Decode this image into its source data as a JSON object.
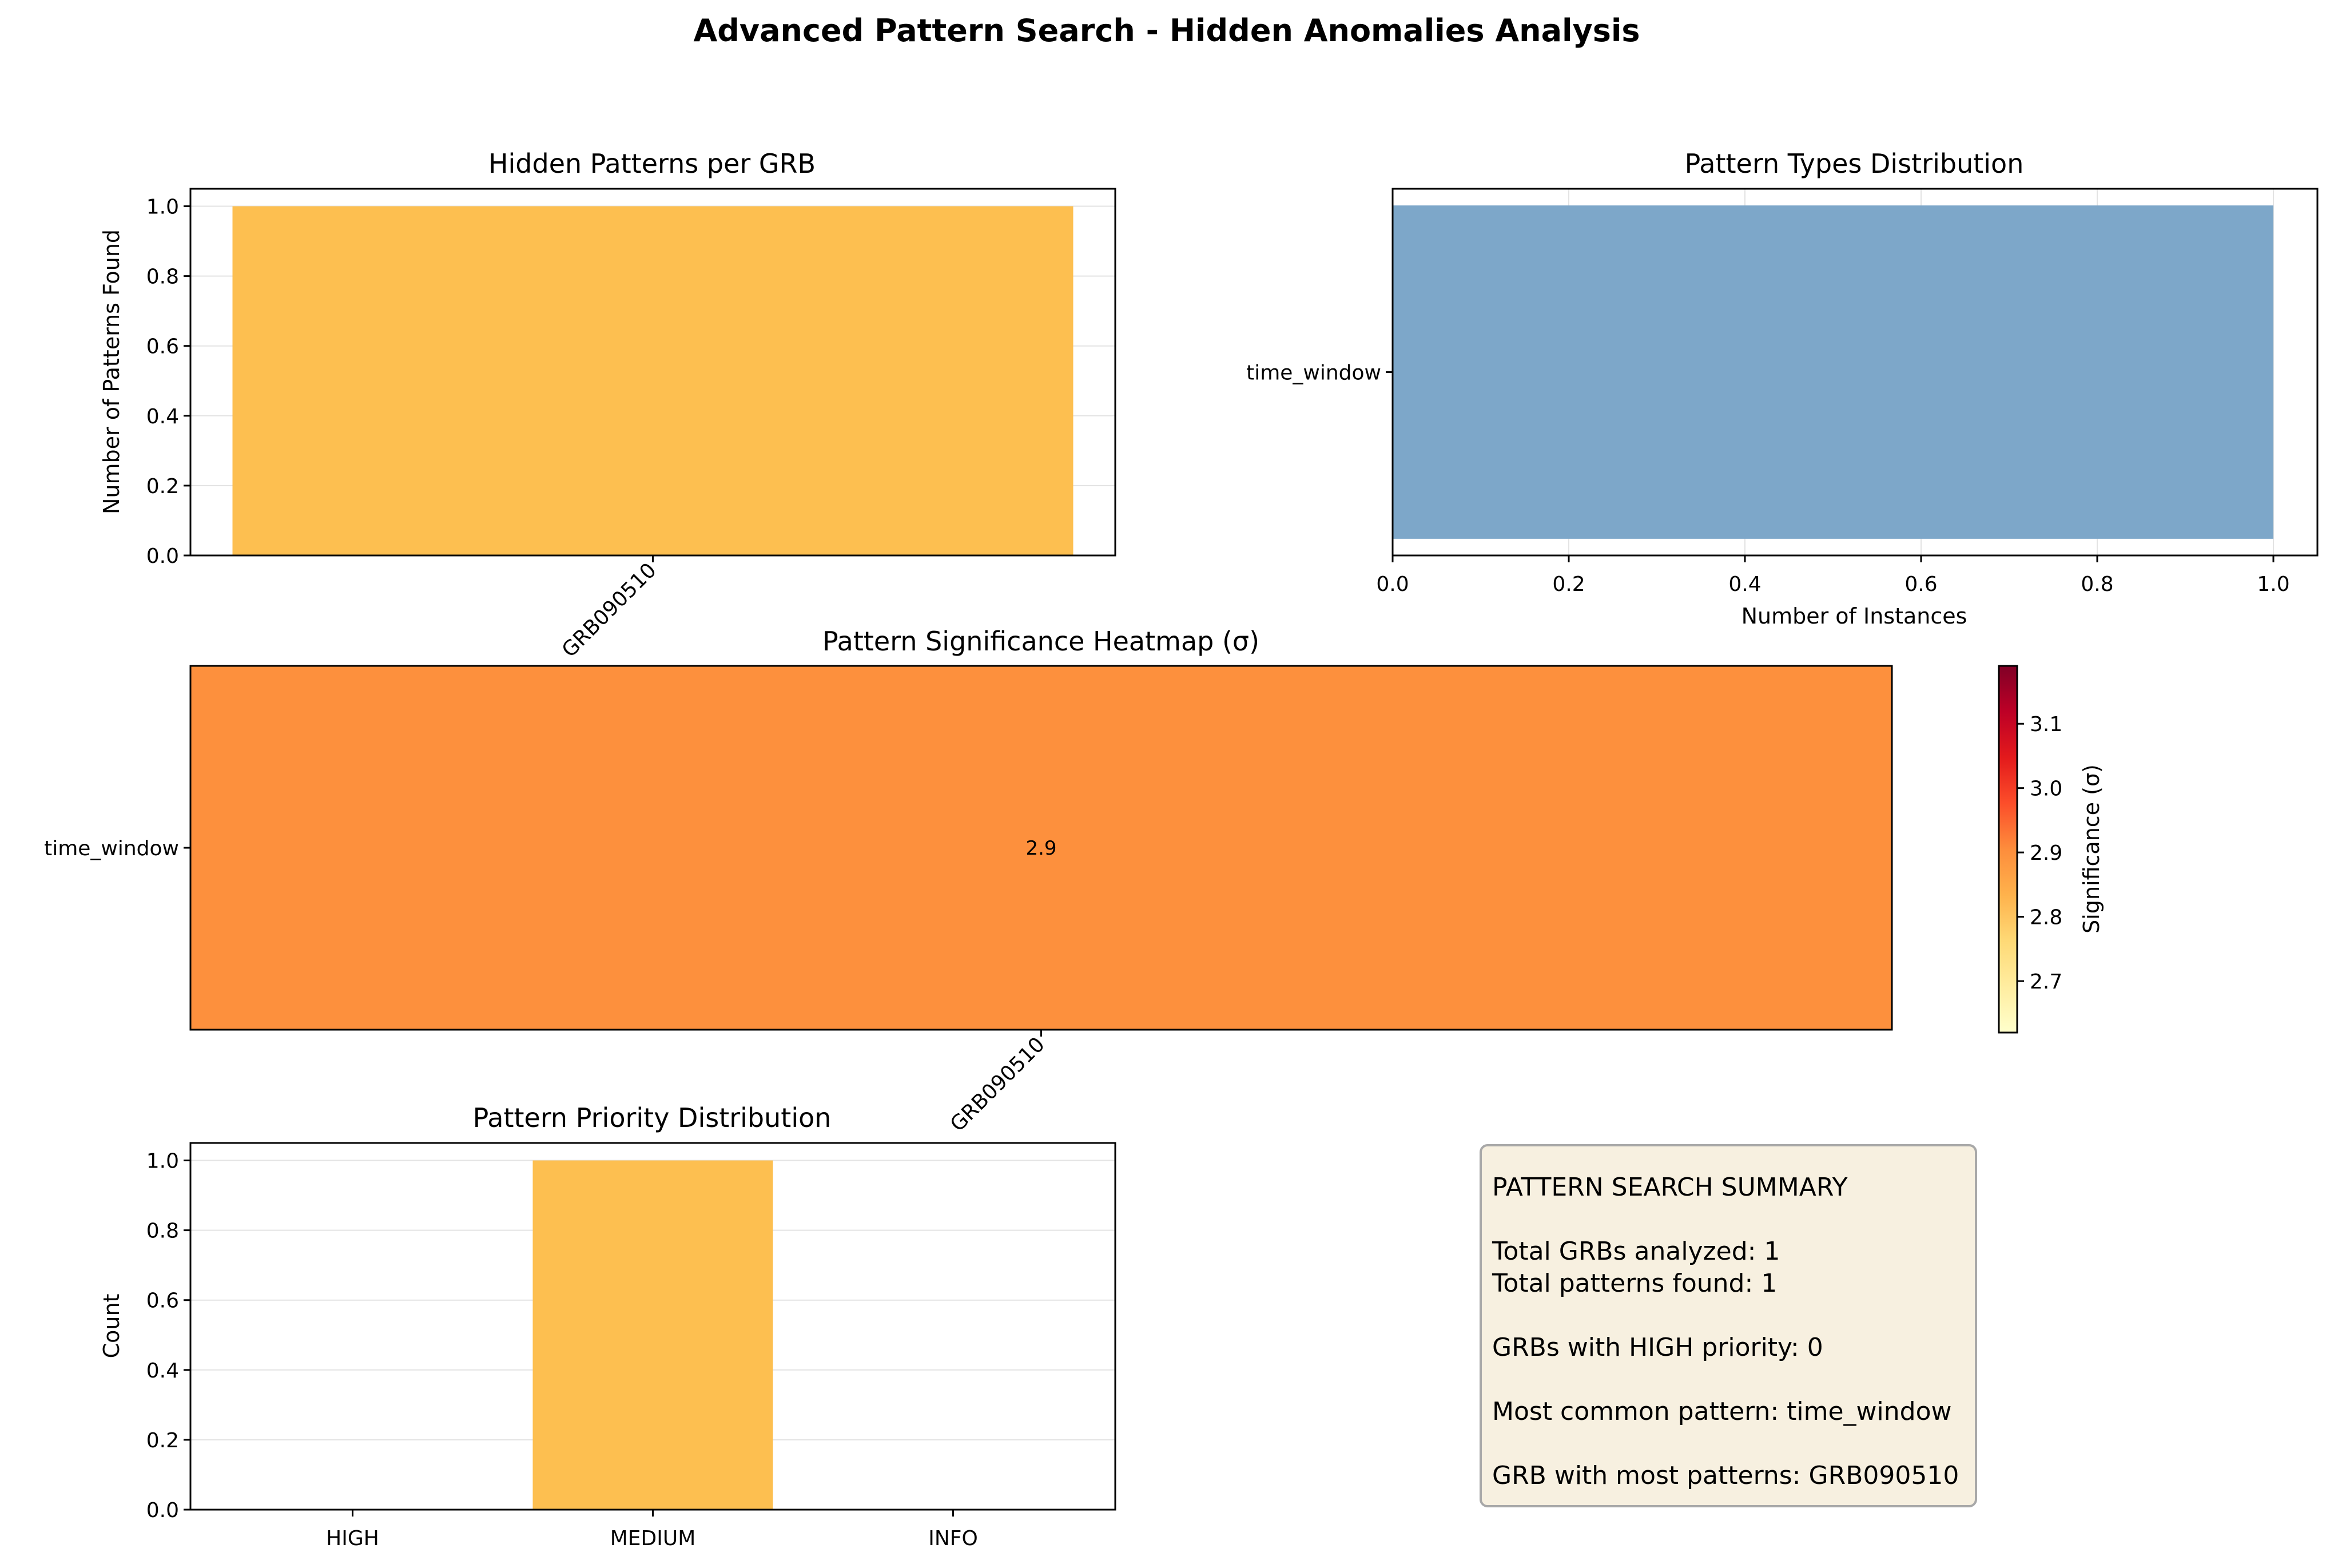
{
  "figure": {
    "title": "Advanced Pattern Search - Hidden Anomalies Analysis"
  },
  "chart_data": [
    {
      "type": "bar",
      "title": "Hidden Patterns per GRB",
      "categories": [
        "GRB090510"
      ],
      "values": [
        1
      ],
      "xlabel": "",
      "ylabel": "Number of Patterns Found",
      "ylim": [
        0,
        1.05
      ],
      "yticks": [
        "0.0",
        "0.2",
        "0.4",
        "0.6",
        "0.8",
        "1.0"
      ],
      "grid": "y",
      "color": "#fdbf50"
    },
    {
      "type": "bar",
      "orientation": "horizontal",
      "title": "Pattern Types Distribution",
      "categories": [
        "time_window"
      ],
      "values": [
        1
      ],
      "xlabel": "Number of Instances",
      "ylabel": "",
      "xlim": [
        0,
        1.05
      ],
      "xticks": [
        "0.0",
        "0.2",
        "0.4",
        "0.6",
        "0.8",
        "1.0"
      ],
      "grid": "x",
      "color": "#7da7c9"
    },
    {
      "type": "heatmap",
      "title": "Pattern Significance Heatmap (σ)",
      "rows": [
        "time_window"
      ],
      "columns": [
        "GRB090510"
      ],
      "values": [
        [
          2.9
        ]
      ],
      "cell_labels": [
        "2.9"
      ],
      "colorbar_label": "Significance (σ)",
      "colorbar_range": [
        2.62,
        3.19
      ],
      "colorbar_ticks": [
        "2.7",
        "2.8",
        "2.9",
        "3.0",
        "3.1"
      ],
      "colormap": "YlOrRd"
    },
    {
      "type": "bar",
      "title": "Pattern Priority Distribution",
      "categories": [
        "HIGH",
        "MEDIUM",
        "INFO"
      ],
      "values": [
        0,
        1,
        0
      ],
      "xlabel": "",
      "ylabel": "Count",
      "ylim": [
        0,
        1.05
      ],
      "yticks": [
        "0.0",
        "0.2",
        "0.4",
        "0.6",
        "0.8",
        "1.0"
      ],
      "grid": "y",
      "color": "#fdbf50"
    }
  ],
  "summary": {
    "heading": "PATTERN SEARCH SUMMARY",
    "total_grbs": "Total GRBs analyzed: 1",
    "total_patterns": "Total patterns found: 1",
    "high_priority": "GRBs with HIGH priority: 0",
    "most_common": "Most common pattern: time_window",
    "most_patterns": "GRB with most patterns: GRB090510"
  }
}
